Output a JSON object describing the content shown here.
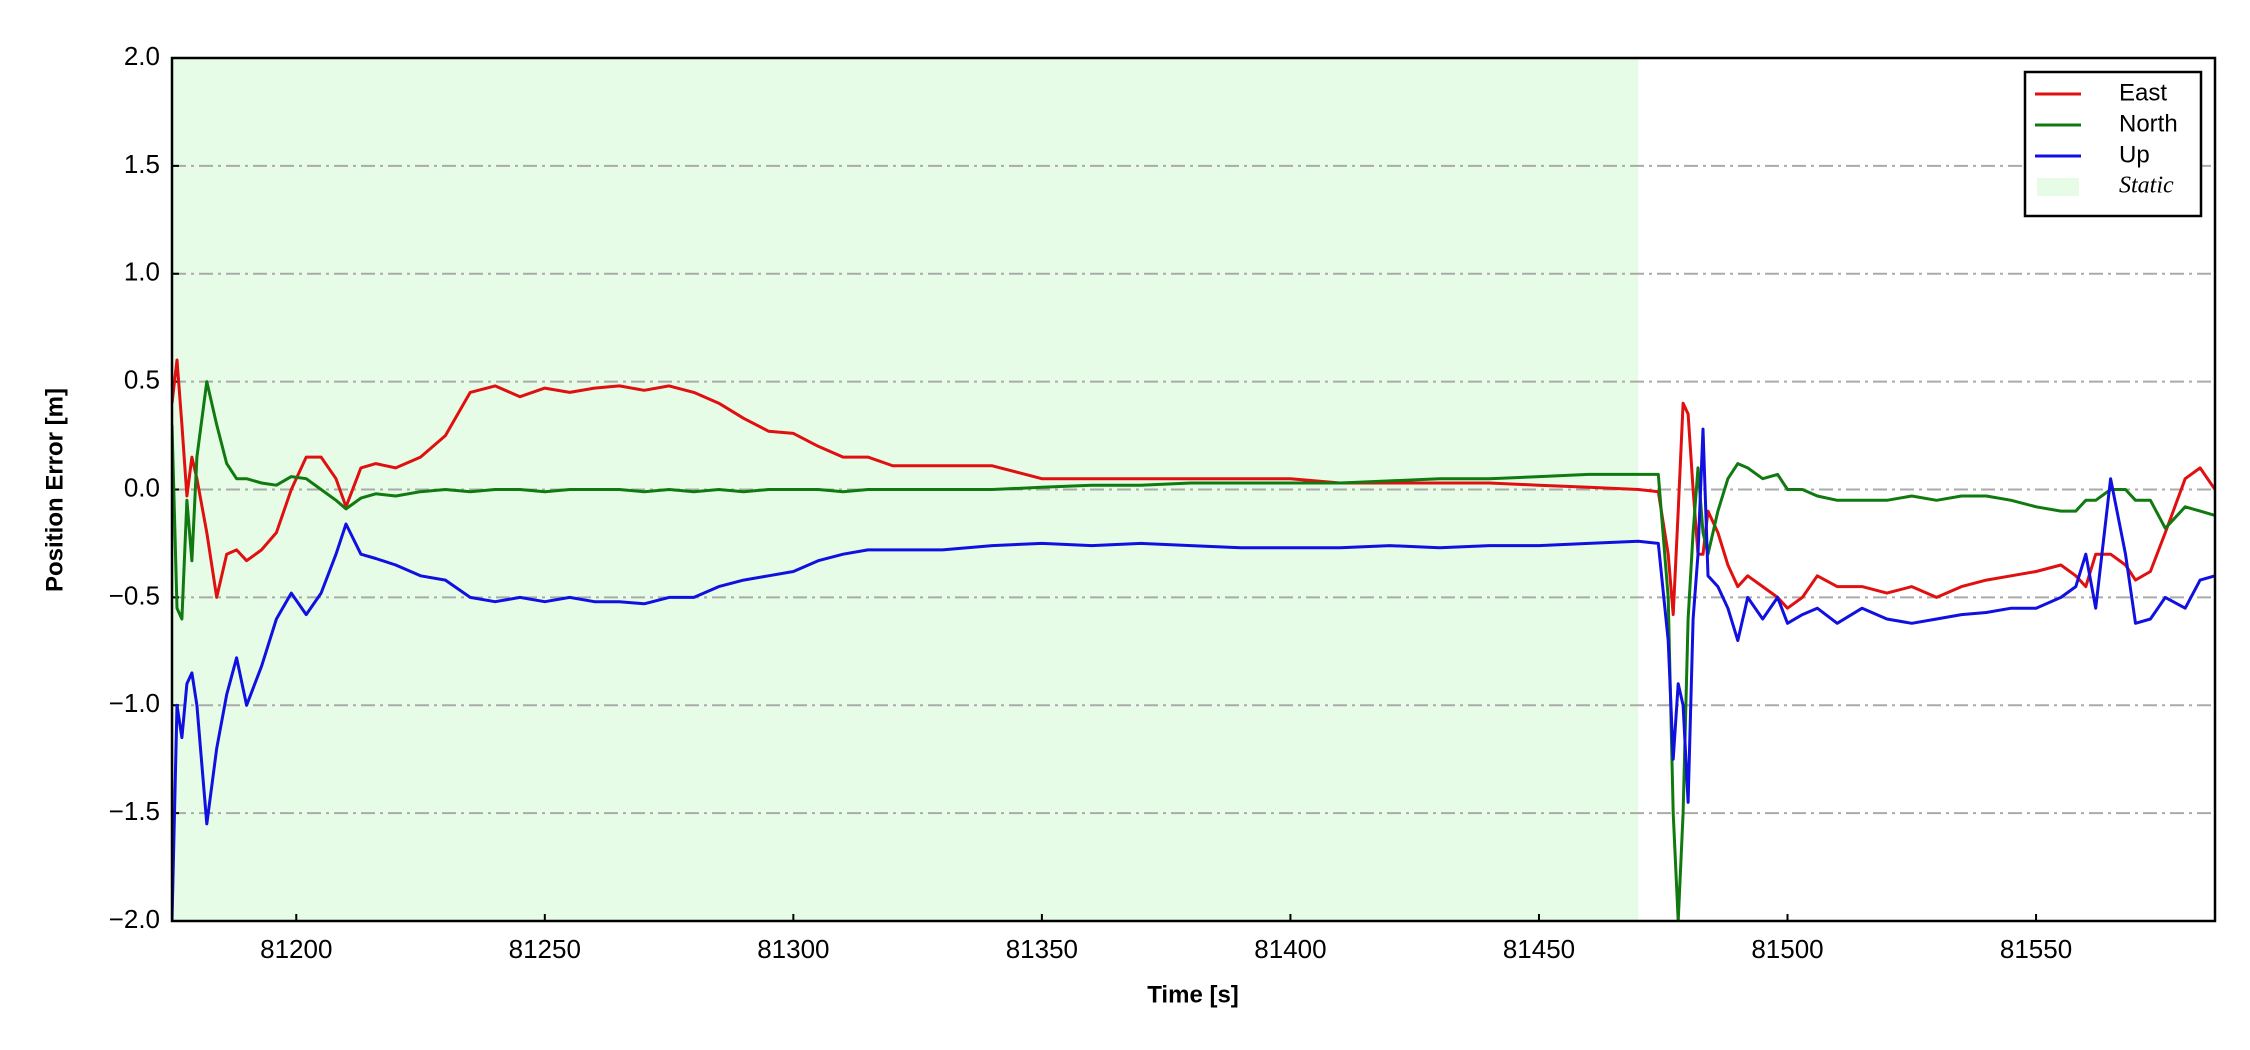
{
  "chart_data": {
    "type": "line",
    "x_label": "Time [s]",
    "y_label": "Position Error [m]",
    "xlim": [
      81175,
      81586
    ],
    "ylim": [
      -2,
      2
    ],
    "xticks": [
      81200,
      81250,
      81300,
      81350,
      81400,
      81450,
      81500,
      81550
    ],
    "yticks": [
      {
        "value": -2,
        "label": "−2.0"
      },
      {
        "value": -1.5,
        "label": "−1.5"
      },
      {
        "value": -1,
        "label": "−1.0"
      },
      {
        "value": -0.5,
        "label": "−0.5"
      },
      {
        "value": 0,
        "label": "0.0"
      },
      {
        "value": 0.5,
        "label": "0.5"
      },
      {
        "value": 1,
        "label": "1.0"
      },
      {
        "value": 1.5,
        "label": "1.5"
      },
      {
        "value": 2,
        "label": "2.0"
      }
    ],
    "grid": true,
    "legend": "upper right",
    "shaded_region": {
      "name": "Static",
      "color": "#e6fce6",
      "xlim": [
        81175,
        81470
      ]
    },
    "x": [
      81175,
      81176,
      81177,
      81178,
      81179,
      81180,
      81182,
      81184,
      81186,
      81188,
      81190,
      81193,
      81196,
      81199,
      81202,
      81205,
      81208,
      81210,
      81213,
      81216,
      81220,
      81225,
      81230,
      81235,
      81240,
      81245,
      81250,
      81255,
      81260,
      81265,
      81270,
      81275,
      81280,
      81285,
      81290,
      81295,
      81300,
      81305,
      81310,
      81315,
      81320,
      81330,
      81340,
      81350,
      81360,
      81370,
      81380,
      81390,
      81400,
      81410,
      81420,
      81430,
      81440,
      81450,
      81460,
      81470,
      81474,
      81476,
      81477,
      81478,
      81479,
      81480,
      81481,
      81482,
      81483,
      81484,
      81486,
      81488,
      81490,
      81492,
      81495,
      81498,
      81500,
      81503,
      81506,
      81510,
      81515,
      81520,
      81525,
      81530,
      81535,
      81540,
      81545,
      81550,
      81555,
      81558,
      81560,
      81562,
      81565,
      81568,
      81570,
      81573,
      81576,
      81580,
      81583,
      81586
    ],
    "series": [
      {
        "name": "East",
        "color": "#e01010",
        "values": [
          0.4,
          0.6,
          0.3,
          -0.03,
          0.15,
          0.05,
          -0.2,
          -0.5,
          -0.3,
          -0.28,
          -0.33,
          -0.28,
          -0.2,
          0.0,
          0.15,
          0.15,
          0.05,
          -0.08,
          0.1,
          0.12,
          0.1,
          0.15,
          0.25,
          0.45,
          0.48,
          0.43,
          0.47,
          0.45,
          0.47,
          0.48,
          0.46,
          0.48,
          0.45,
          0.4,
          0.33,
          0.27,
          0.26,
          0.2,
          0.15,
          0.15,
          0.11,
          0.11,
          0.11,
          0.05,
          0.05,
          0.05,
          0.05,
          0.05,
          0.05,
          0.03,
          0.03,
          0.03,
          0.03,
          0.02,
          0.01,
          0.0,
          -0.01,
          -0.3,
          -0.58,
          -0.1,
          0.4,
          0.35,
          0.0,
          -0.3,
          -0.3,
          -0.1,
          -0.2,
          -0.35,
          -0.45,
          -0.4,
          -0.45,
          -0.5,
          -0.55,
          -0.5,
          -0.4,
          -0.45,
          -0.45,
          -0.48,
          -0.45,
          -0.5,
          -0.45,
          -0.42,
          -0.4,
          -0.38,
          -0.35,
          -0.4,
          -0.45,
          -0.3,
          -0.3,
          -0.35,
          -0.42,
          -0.38,
          -0.2,
          0.05,
          0.1,
          0.0
        ]
      },
      {
        "name": "North",
        "color": "#107a10",
        "values": [
          0.3,
          -0.55,
          -0.6,
          -0.05,
          -0.33,
          0.15,
          0.5,
          0.3,
          0.12,
          0.05,
          0.05,
          0.03,
          0.02,
          0.06,
          0.05,
          0.0,
          -0.05,
          -0.09,
          -0.04,
          -0.02,
          -0.03,
          -0.01,
          0.0,
          -0.01,
          0.0,
          0.0,
          -0.01,
          0.0,
          0.0,
          0.0,
          -0.01,
          0.0,
          -0.01,
          0.0,
          -0.01,
          0.0,
          0.0,
          0.0,
          -0.01,
          0.0,
          0.0,
          0.0,
          0.0,
          0.01,
          0.02,
          0.02,
          0.03,
          0.03,
          0.03,
          0.03,
          0.04,
          0.05,
          0.05,
          0.06,
          0.07,
          0.07,
          0.07,
          -0.5,
          -1.5,
          -2.0,
          -1.5,
          -0.6,
          -0.2,
          0.1,
          -0.2,
          -0.3,
          -0.1,
          0.05,
          0.12,
          0.1,
          0.05,
          0.07,
          0.0,
          0.0,
          -0.03,
          -0.05,
          -0.05,
          -0.05,
          -0.03,
          -0.05,
          -0.03,
          -0.03,
          -0.05,
          -0.08,
          -0.1,
          -0.1,
          -0.05,
          -0.05,
          0.0,
          0.0,
          -0.05,
          -0.05,
          -0.18,
          -0.08,
          -0.1,
          -0.12
        ]
      },
      {
        "name": "Up",
        "color": "#1010e0",
        "values": [
          -2.0,
          -1.0,
          -1.15,
          -0.9,
          -0.85,
          -1.0,
          -1.55,
          -1.2,
          -0.95,
          -0.78,
          -1.0,
          -0.82,
          -0.6,
          -0.48,
          -0.58,
          -0.48,
          -0.3,
          -0.16,
          -0.3,
          -0.32,
          -0.35,
          -0.4,
          -0.42,
          -0.5,
          -0.52,
          -0.5,
          -0.52,
          -0.5,
          -0.52,
          -0.52,
          -0.53,
          -0.5,
          -0.5,
          -0.45,
          -0.42,
          -0.4,
          -0.38,
          -0.33,
          -0.3,
          -0.28,
          -0.28,
          -0.28,
          -0.26,
          -0.25,
          -0.26,
          -0.25,
          -0.26,
          -0.27,
          -0.27,
          -0.27,
          -0.26,
          -0.27,
          -0.26,
          -0.26,
          -0.25,
          -0.24,
          -0.25,
          -0.7,
          -1.25,
          -0.9,
          -1.0,
          -1.45,
          -0.6,
          -0.3,
          0.28,
          -0.4,
          -0.45,
          -0.55,
          -0.7,
          -0.5,
          -0.6,
          -0.5,
          -0.62,
          -0.58,
          -0.55,
          -0.62,
          -0.55,
          -0.6,
          -0.62,
          -0.6,
          -0.58,
          -0.57,
          -0.55,
          -0.55,
          -0.5,
          -0.45,
          -0.3,
          -0.55,
          0.05,
          -0.3,
          -0.62,
          -0.6,
          -0.5,
          -0.55,
          -0.42,
          -0.4
        ]
      }
    ]
  }
}
